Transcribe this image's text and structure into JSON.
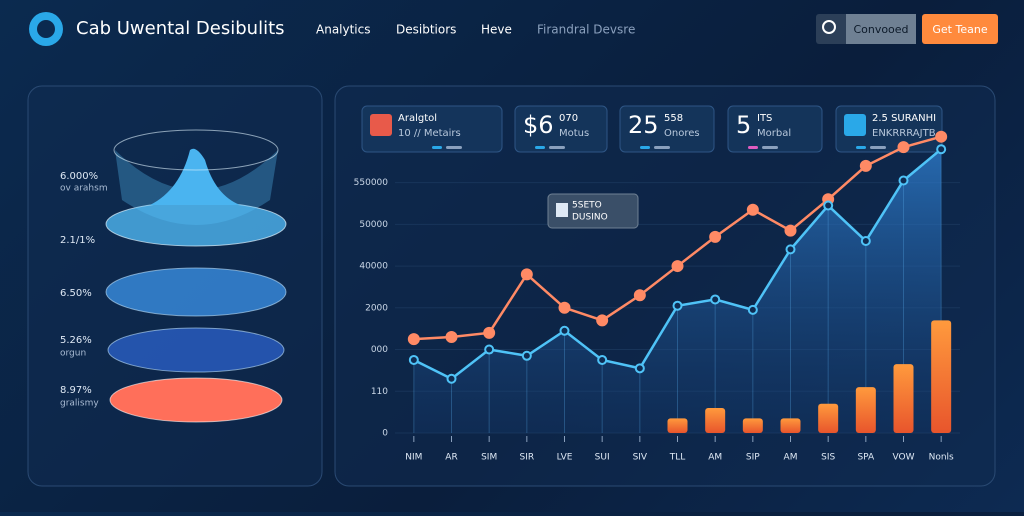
{
  "header": {
    "title": "Cab Uwental Desibulits",
    "nav": [
      "Analytics",
      "Desibtiors",
      "Heve",
      "Firandral Devsre"
    ],
    "search_button": "Convooed",
    "cta_button": "Get Teane"
  },
  "funnel": {
    "labels": [
      [
        "6.000%",
        "ov arahsm"
      ],
      [
        "2.1/1%"
      ],
      [
        "6.50%"
      ],
      [
        "5.26%",
        "orgun"
      ],
      [
        "8.97%",
        "gralismy"
      ]
    ]
  },
  "kpis": [
    {
      "big": "",
      "title": "Aralgtol",
      "sub": "10 // Metairs"
    },
    {
      "big": "$6",
      "title": "070",
      "sub": "Motus"
    },
    {
      "big": "25",
      "title": "558",
      "sub": "Onores"
    },
    {
      "big": "5",
      "title": "ITS",
      "sub": "Morbal"
    },
    {
      "big": "",
      "title": "2.5 SURANHI",
      "sub": "ENKRRRAJTB"
    }
  ],
  "chart_data": {
    "type": "line",
    "annotation": [
      "5SETO",
      "DUSINO"
    ],
    "categories": [
      "NIM",
      "AR",
      "SIM",
      "SIR",
      "LVE",
      "SUI",
      "SIV",
      "TLL",
      "AM",
      "SIP",
      "AM",
      "SIS",
      "SPA",
      "VOW",
      "Nonls"
    ],
    "series": [
      {
        "color": "#ff8a65",
        "kind": "line",
        "values": [
          2.25,
          2.3,
          2.4,
          3.8,
          3.0,
          2.7,
          3.3,
          4.0,
          4.7,
          5.35,
          4.85,
          5.6,
          6.4,
          6.85,
          7.1
        ]
      },
      {
        "color": "#4fc3f7",
        "kind": "area",
        "values": [
          1.75,
          1.3,
          2.0,
          1.85,
          2.45,
          1.75,
          1.55,
          3.05,
          3.2,
          2.95,
          4.4,
          5.45,
          4.6,
          6.05,
          6.8
        ]
      },
      {
        "color": "#ff8a3d",
        "kind": "bar",
        "values": [
          null,
          null,
          null,
          null,
          null,
          null,
          null,
          0.35,
          0.6,
          0.35,
          0.35,
          0.7,
          1.1,
          1.65,
          2.7
        ]
      }
    ],
    "ylim": [
      0,
      7.5
    ],
    "yticks": [
      {
        "value": 0,
        "label": "0"
      },
      {
        "value": 1,
        "label": "110"
      },
      {
        "value": 2,
        "label": "000"
      },
      {
        "value": 3,
        "label": "2000"
      },
      {
        "value": 4,
        "label": "40000"
      },
      {
        "value": 5,
        "label": "50000"
      },
      {
        "value": 6,
        "label": "550000"
      }
    ]
  }
}
